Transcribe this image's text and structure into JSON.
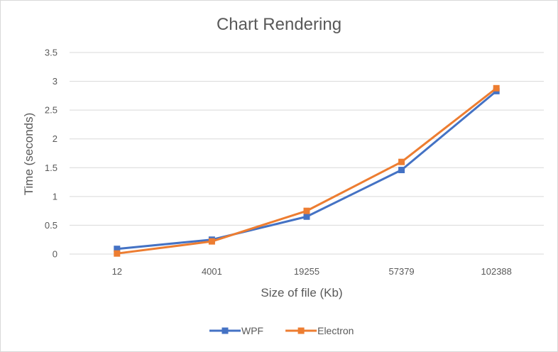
{
  "chart_data": {
    "type": "line",
    "title": "Chart Rendering",
    "xlabel": "Size of file (Kb)",
    "ylabel": "Time (seconds)",
    "categories": [
      "12",
      "4001",
      "19255",
      "57379",
      "102388"
    ],
    "ylim": [
      0,
      3.5
    ],
    "yticks": [
      "0",
      "0.5",
      "1",
      "1.5",
      "2",
      "2.5",
      "3",
      "3.5"
    ],
    "grid": true,
    "legend_position": "bottom",
    "series": [
      {
        "name": "WPF",
        "color": "#4472C4",
        "marker": "square",
        "values": [
          0.09,
          0.25,
          0.65,
          1.46,
          2.83
        ]
      },
      {
        "name": "Electron",
        "color": "#ED7D31",
        "marker": "square",
        "values": [
          0.01,
          0.22,
          0.75,
          1.6,
          2.88
        ]
      }
    ]
  }
}
